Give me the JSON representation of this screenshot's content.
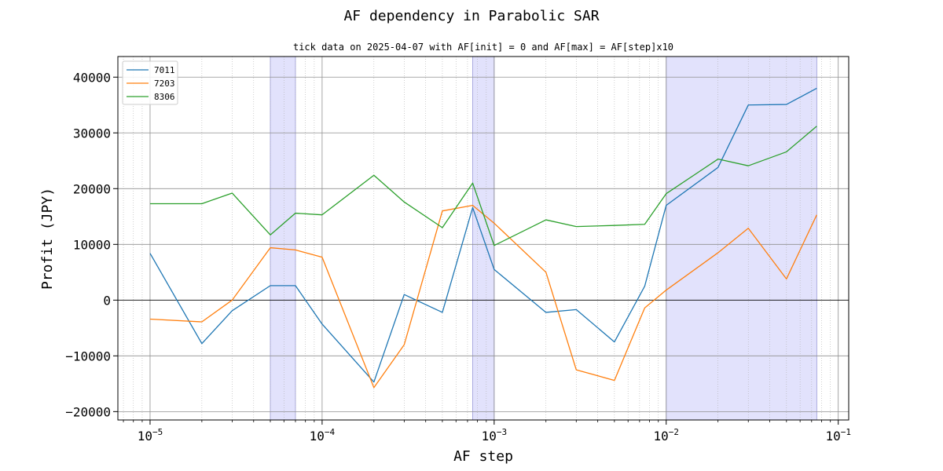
{
  "chart_data": {
    "type": "line",
    "title": "AF dependency in Parabolic SAR",
    "subtitle": "tick data on 2025-04-07 with AF[init] = 0 and AF[max] = AF[step]x10",
    "xlabel": "AF step",
    "ylabel": "Profit (JPY)",
    "xscale": "log",
    "xlim": [
      6.5e-06,
      0.115
    ],
    "ylim": [
      -21500,
      43700
    ],
    "grid": true,
    "legend_position": "top-left",
    "x": [
      1e-05,
      2e-05,
      3e-05,
      5e-05,
      7e-05,
      0.0001,
      0.0002,
      0.0003,
      0.0005,
      0.00075,
      0.001,
      0.002,
      0.003,
      0.005,
      0.0075,
      0.01,
      0.02,
      0.03,
      0.05,
      0.075
    ],
    "series": [
      {
        "name": "7011",
        "color": "#1f77b4",
        "values": [
          8400,
          -7800,
          -1900,
          2600,
          2600,
          -4300,
          -14700,
          1000,
          -2200,
          16600,
          5500,
          -2200,
          -1700,
          -7500,
          2500,
          17000,
          23800,
          35000,
          35100,
          38000
        ]
      },
      {
        "name": "7203",
        "color": "#ff7f0e",
        "values": [
          -3400,
          -3900,
          0,
          9400,
          9000,
          7700,
          -15700,
          -8000,
          16000,
          17000,
          13800,
          5000,
          -12500,
          -14400,
          -1400,
          1800,
          8500,
          12900,
          3800,
          15300
        ]
      },
      {
        "name": "8306",
        "color": "#2ca02c",
        "values": [
          17300,
          17300,
          19200,
          11700,
          15600,
          15300,
          22400,
          17600,
          13000,
          21000,
          9800,
          14400,
          13200,
          13400,
          13600,
          19100,
          25300,
          24100,
          26600,
          31200
        ]
      }
    ],
    "shaded_regions": [
      {
        "x0": 5e-05,
        "x1": 7e-05
      },
      {
        "x0": 0.00075,
        "x1": 0.001
      },
      {
        "x0": 0.01,
        "x1": 0.075
      }
    ],
    "y_ticks": [
      -20000,
      -10000,
      0,
      10000,
      20000,
      30000,
      40000
    ],
    "y_tick_labels": [
      "−20000",
      "−10000",
      "0",
      "10000",
      "20000",
      "30000",
      "40000"
    ],
    "x_major_ticks": [
      1e-05,
      0.0001,
      0.001,
      0.01,
      0.1
    ],
    "x_tick_base": "10",
    "x_tick_exponents": [
      "−5",
      "−4",
      "−3",
      "−2",
      "−1"
    ],
    "shade_color": "#e2e2fc",
    "zero_line_color": "#000000"
  }
}
